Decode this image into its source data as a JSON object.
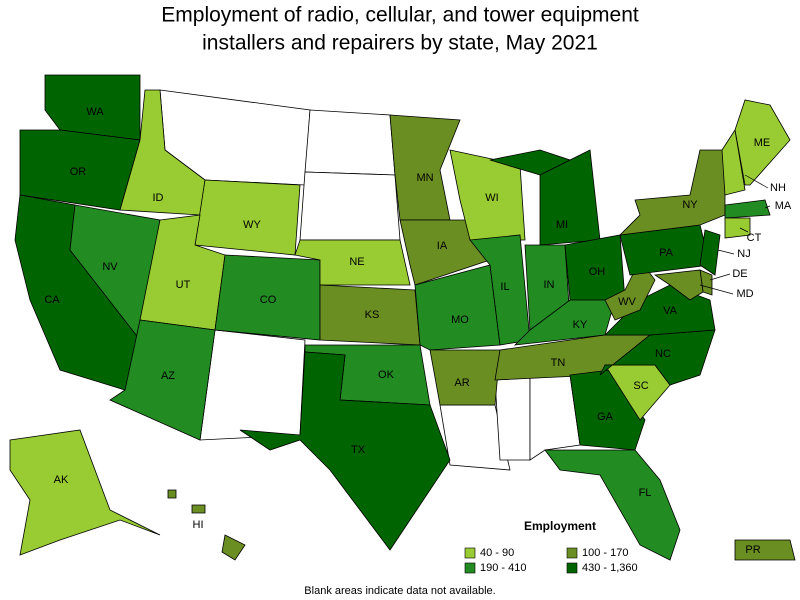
{
  "title_lines": [
    "Employment of radio, cellular, and tower equipment",
    "installers and repairers by state, May 2021"
  ],
  "legend": {
    "title": "Employment",
    "items": [
      {
        "label": "40 - 90",
        "color": "#99cc33",
        "states": [
          "AK",
          "ID",
          "WY",
          "UT",
          "NE",
          "WI",
          "SC",
          "ME",
          "NH",
          "CT"
        ]
      },
      {
        "label": "100 - 170",
        "color": "#6b8e23",
        "states": [
          "MN",
          "IA",
          "KS",
          "AR",
          "TN",
          "WV",
          "NY",
          "DE",
          "MD",
          "HI",
          "PR"
        ]
      },
      {
        "label": "190 - 410",
        "color": "#228b22",
        "states": [
          "NV",
          "CO",
          "AZ",
          "OK",
          "MO",
          "IL",
          "IN",
          "KY",
          "FL",
          "MA"
        ]
      },
      {
        "label": "430 - 1,360",
        "color": "#006400",
        "states": [
          "WA",
          "OR",
          "CA",
          "TX",
          "MI",
          "OH",
          "PA",
          "VA",
          "NC",
          "GA",
          "NJ"
        ]
      }
    ]
  },
  "note": "Blank areas indicate data not available."
}
